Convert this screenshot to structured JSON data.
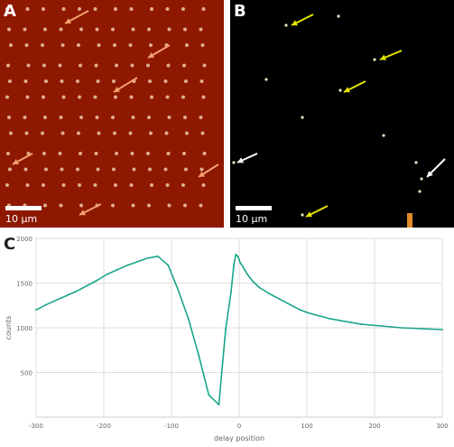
{
  "panel_a": {
    "letter": "A",
    "scale_label": "10 μm",
    "background_color": "#8e1800",
    "dot_color": "#f0c8a8",
    "arrow_color": "#f5a06e",
    "arrow_icon": "arrow-icon"
  },
  "panel_b": {
    "letter": "B",
    "scale_label": "10 μm",
    "background_color": "#000000",
    "arrow_yellow": "#e5e500",
    "arrow_white": "#ffffff",
    "arrow_icon": "arrow-icon"
  },
  "panel_c": {
    "letter": "C"
  },
  "chart_data": {
    "type": "line",
    "title": "",
    "xlabel": "delay position",
    "ylabel": "counts",
    "xlim": [
      -300,
      300
    ],
    "ylim": [
      0,
      2000
    ],
    "x_ticks": [
      "-300",
      "-200",
      "-100",
      "0",
      "100",
      "200",
      "300"
    ],
    "y_ticks": [
      "500",
      "1000",
      "1500",
      "2000"
    ],
    "series": [
      {
        "color": "#19a58a",
        "x": [
          -300,
          -285,
          -270,
          -255,
          -240,
          -225,
          -210,
          -195,
          -180,
          -165,
          -150,
          -135,
          -120,
          -105,
          -90,
          -75,
          -60,
          -45,
          -30,
          -20,
          -12,
          -8,
          -5,
          -2,
          0,
          2,
          5,
          8,
          12,
          20,
          30,
          45,
          60,
          75,
          90,
          105,
          120,
          135,
          150,
          165,
          180,
          195,
          210,
          225,
          240,
          255,
          270,
          285,
          300
        ],
        "y": [
          1200,
          1260,
          1310,
          1360,
          1410,
          1470,
          1530,
          1600,
          1650,
          1700,
          1740,
          1780,
          1800,
          1700,
          1420,
          1100,
          700,
          250,
          140,
          980,
          1400,
          1700,
          1820,
          1800,
          1760,
          1720,
          1690,
          1650,
          1600,
          1520,
          1450,
          1380,
          1320,
          1260,
          1200,
          1160,
          1130,
          1100,
          1080,
          1060,
          1040,
          1030,
          1020,
          1010,
          1000,
          995,
          990,
          985,
          980
        ]
      }
    ],
    "grid": true,
    "legend": "none"
  }
}
